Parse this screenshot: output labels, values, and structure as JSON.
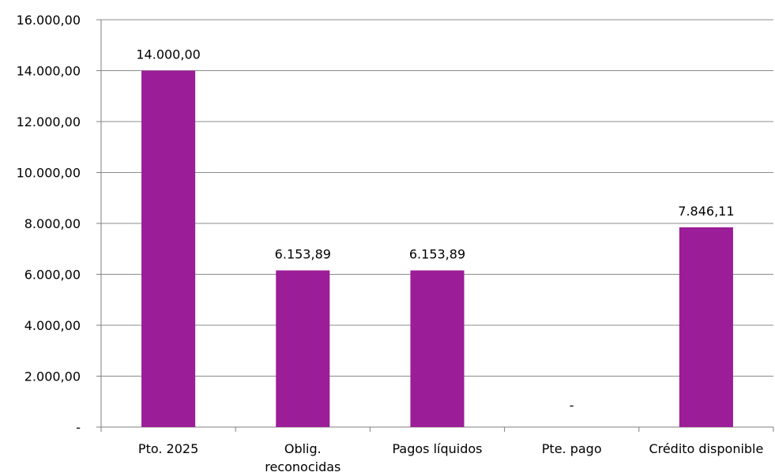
{
  "chart_data": {
    "type": "bar",
    "categories": [
      "Pto. 2025",
      "Oblig.\nreconocidas",
      "Pagos líquidos",
      "Pte. pago",
      "Crédito disponible"
    ],
    "values": [
      14000.0,
      6153.89,
      6153.89,
      0,
      7846.11
    ],
    "data_labels": [
      "14.000,00",
      "6.153,89",
      "6.153,89",
      "-",
      "7.846,11"
    ],
    "ylim": [
      0,
      16000
    ],
    "y_ticks": [
      0,
      2000,
      4000,
      6000,
      8000,
      10000,
      12000,
      14000,
      16000
    ],
    "y_tick_labels": [
      "-",
      "2.000,00",
      "4.000,00",
      "6.000,00",
      "8.000,00",
      "10.000,00",
      "12.000,00",
      "14.000,00",
      "16.000,00"
    ],
    "grid": true,
    "legend": "none",
    "bar_color": "#9B1D98",
    "grid_color": "#8C8C8C",
    "axis_color": "#7F7F7F"
  }
}
